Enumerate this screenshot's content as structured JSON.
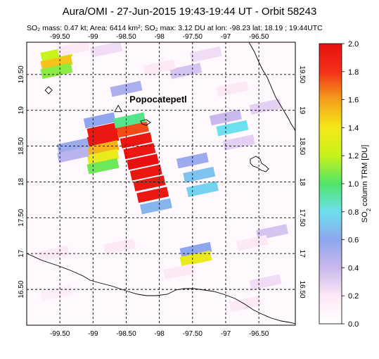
{
  "title": "Aura/OMI - 27-Jun-2015 19:43-19:44 UT - Orbit 58243",
  "subtitle": "SO₂ mass: 0.47 kt; Area: 6414 km²; SO₂ max: 3.12 DU at lon: -98.23 lat: 18.19 ; 19:44UTC",
  "volcano_label": "Popocatepetl",
  "map": {
    "lon_min": -100.0,
    "lon_max": -95.95,
    "lat_min": 16.0,
    "lat_max": 19.95,
    "lon_ticks": [
      {
        "v": -99.5,
        "label": "-99.50"
      },
      {
        "v": -99,
        "label": "-99"
      },
      {
        "v": -98.5,
        "label": "-98.50"
      },
      {
        "v": -98,
        "label": "-98"
      },
      {
        "v": -97.5,
        "label": "-97.50"
      },
      {
        "v": -97,
        "label": "-97"
      },
      {
        "v": -96.5,
        "label": "-96.50"
      }
    ],
    "lat_ticks": [
      {
        "v": 19.5,
        "label": "19.50"
      },
      {
        "v": 19,
        "label": "19"
      },
      {
        "v": 18.5,
        "label": "18.50"
      },
      {
        "v": 18,
        "label": "18"
      },
      {
        "v": 17.5,
        "label": "17.50"
      },
      {
        "v": 17,
        "label": "17"
      },
      {
        "v": 16.5,
        "label": "16.50"
      }
    ],
    "volcano_marker": {
      "lon": -98.62,
      "lat": 19.02
    },
    "diamond_marker": {
      "lon": -99.67,
      "lat": 19.28
    }
  },
  "colorbar": {
    "label": "SO₂ column TRM [DU]",
    "min": 0.0,
    "max": 2.0,
    "ticks": [
      "0.0",
      "0.2",
      "0.4",
      "0.6",
      "0.8",
      "1.0",
      "1.2",
      "1.4",
      "1.6",
      "1.8",
      "2.0"
    ],
    "stops": [
      "#ffffff",
      "#fde8f6",
      "#c9b8ee",
      "#8ea6ee",
      "#6ce0ee",
      "#4fe46a",
      "#c8f21a",
      "#f5e81a",
      "#f5a01a",
      "#f33018",
      "#e81010"
    ]
  },
  "pixels": [
    {
      "cx": -99.55,
      "cy": 19.78,
      "v": 1.2
    },
    {
      "cx": -99.55,
      "cy": 19.66,
      "v": 1.5
    },
    {
      "cx": -99.55,
      "cy": 19.55,
      "v": 1.1
    },
    {
      "cx": -99.3,
      "cy": 19.86,
      "v": 0.2
    },
    {
      "cx": -98.9,
      "cy": 18.86,
      "v": 0.6
    },
    {
      "cx": -98.85,
      "cy": 18.72,
      "v": 1.95
    },
    {
      "cx": -98.85,
      "cy": 18.6,
      "v": 1.95
    },
    {
      "cx": -98.85,
      "cy": 18.47,
      "v": 1.55
    },
    {
      "cx": -98.85,
      "cy": 18.35,
      "v": 1.35
    },
    {
      "cx": -98.85,
      "cy": 18.22,
      "v": 1.05
    },
    {
      "cx": -98.45,
      "cy": 18.86,
      "v": 0.95
    },
    {
      "cx": -98.4,
      "cy": 18.73,
      "v": 1.75
    },
    {
      "cx": -98.35,
      "cy": 18.58,
      "v": 1.95
    },
    {
      "cx": -98.3,
      "cy": 18.43,
      "v": 1.95
    },
    {
      "cx": -98.25,
      "cy": 18.28,
      "v": 2.0
    },
    {
      "cx": -98.2,
      "cy": 18.13,
      "v": 1.95
    },
    {
      "cx": -98.15,
      "cy": 17.98,
      "v": 1.95
    },
    {
      "cx": -98.1,
      "cy": 17.82,
      "v": 1.95
    },
    {
      "cx": -98.05,
      "cy": 17.66,
      "v": 0.65
    },
    {
      "cx": -98.5,
      "cy": 19.3,
      "v": 0.5
    },
    {
      "cx": -99.3,
      "cy": 18.5,
      "v": 0.55
    },
    {
      "cx": -99.3,
      "cy": 18.38,
      "v": 0.45
    },
    {
      "cx": -97.5,
      "cy": 18.3,
      "v": 0.55
    },
    {
      "cx": -97.4,
      "cy": 18.1,
      "v": 0.7
    },
    {
      "cx": -97.35,
      "cy": 17.9,
      "v": 0.75
    },
    {
      "cx": -97.45,
      "cy": 17.05,
      "v": 0.6
    },
    {
      "cx": -97.45,
      "cy": 16.93,
      "v": 1.35
    },
    {
      "cx": -96.9,
      "cy": 18.75,
      "v": 0.8
    },
    {
      "cx": -97.0,
      "cy": 18.9,
      "v": 0.4
    },
    {
      "cx": -96.8,
      "cy": 18.55,
      "v": 0.3
    },
    {
      "cx": -97.6,
      "cy": 19.55,
      "v": 0.35
    },
    {
      "cx": -98.8,
      "cy": 19.85,
      "v": 0.25
    },
    {
      "cx": -97.3,
      "cy": 19.78,
      "v": 0.25
    },
    {
      "cx": -96.4,
      "cy": 19.05,
      "v": 0.3
    },
    {
      "cx": -96.3,
      "cy": 17.3,
      "v": 0.35
    },
    {
      "cx": -96.6,
      "cy": 17.15,
      "v": 0.2
    },
    {
      "cx": -99.6,
      "cy": 17.0,
      "v": 0.2
    },
    {
      "cx": -99.55,
      "cy": 16.45,
      "v": 0.15
    },
    {
      "cx": -98.6,
      "cy": 17.1,
      "v": 0.2
    },
    {
      "cx": -97.7,
      "cy": 16.75,
      "v": 0.2
    },
    {
      "cx": -96.7,
      "cy": 16.3,
      "v": 0.2
    },
    {
      "cx": -96.4,
      "cy": 16.6,
      "v": 0.25
    },
    {
      "cx": -98.0,
      "cy": 19.6,
      "v": 0.2
    },
    {
      "cx": -96.9,
      "cy": 19.3,
      "v": 0.2
    }
  ]
}
